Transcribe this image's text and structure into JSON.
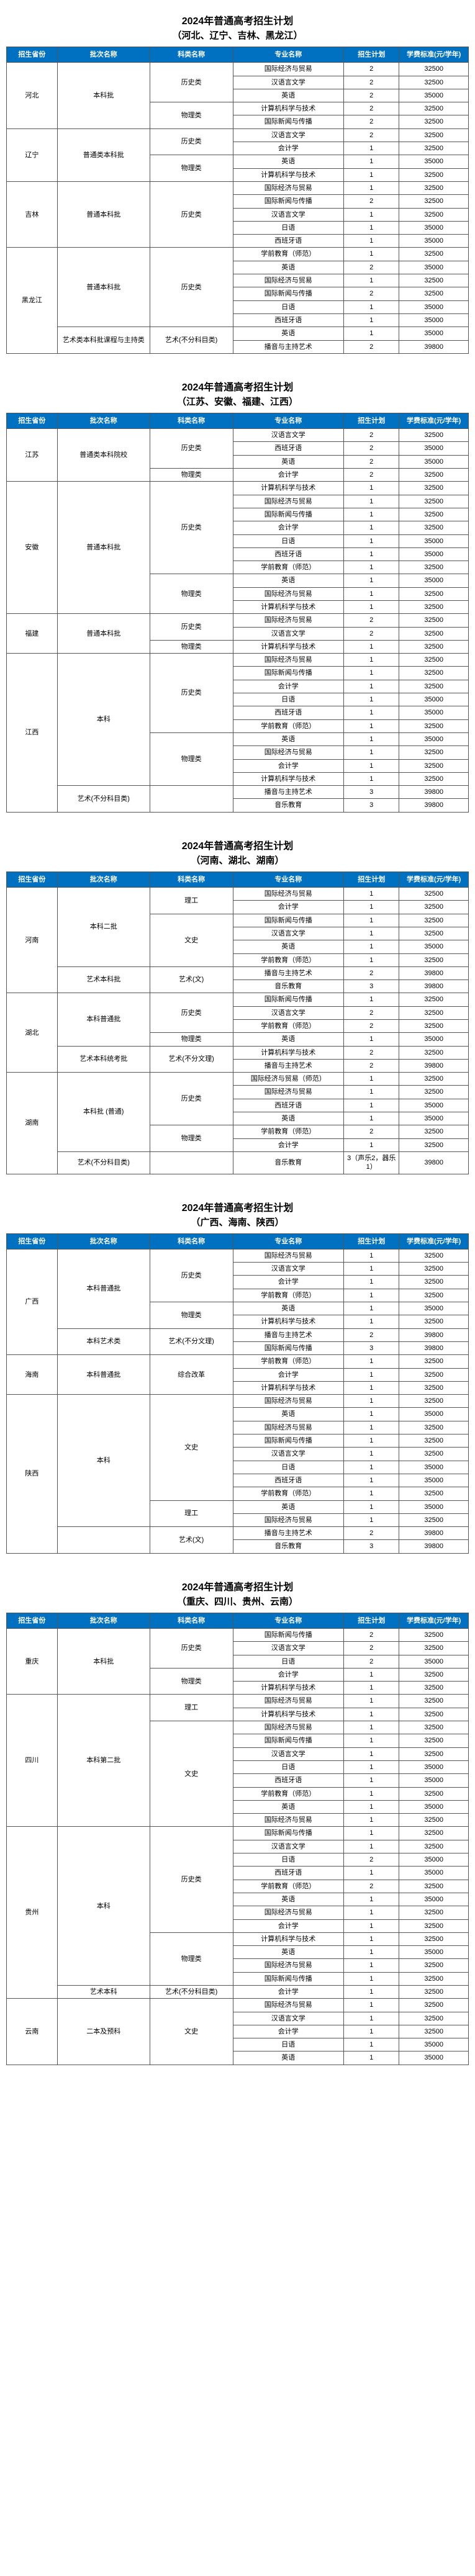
{
  "headers": {
    "province": "招生省份",
    "batch": "批次名称",
    "subject": "科类名称",
    "major": "专业名称",
    "num": "招生计划",
    "fee": "学费标准(元/学年)"
  },
  "sections": [
    {
      "title": "2024年普通高考招生计划",
      "subtitle": "（河北、辽宁、吉林、黑龙江）",
      "rows": [
        {
          "p": "河北",
          "pr": 5,
          "b": "本科批",
          "br": 5,
          "s": "历史类",
          "sr": 3,
          "m": "国际经济与贸易",
          "n": "2",
          "f": "32500"
        },
        {
          "m": "汉语言文学",
          "n": "2",
          "f": "32500"
        },
        {
          "m": "英语",
          "n": "2",
          "f": "35000"
        },
        {
          "s": "物理类",
          "sr": 2,
          "m": "计算机科学与技术",
          "n": "2",
          "f": "32500"
        },
        {
          "m": "国际新闻与传播",
          "n": "2",
          "f": "32500"
        },
        {
          "p": "辽宁",
          "pr": 4,
          "b": "普通类本科批",
          "br": 4,
          "s": "历史类",
          "sr": 2,
          "m": "汉语言文学",
          "n": "2",
          "f": "32500"
        },
        {
          "m": "会计学",
          "n": "1",
          "f": "32500"
        },
        {
          "s": "物理类",
          "sr": 2,
          "m": "英语",
          "n": "1",
          "f": "35000"
        },
        {
          "m": "计算机科学与技术",
          "n": "1",
          "f": "32500"
        },
        {
          "p": "吉林",
          "pr": 5,
          "b": "普通本科批",
          "br": 5,
          "s": "历史类",
          "sr": 5,
          "m": "国际经济与贸易",
          "n": "1",
          "f": "32500"
        },
        {
          "m": "国际新闻与传播",
          "n": "2",
          "f": "32500"
        },
        {
          "m": "汉语言文学",
          "n": "1",
          "f": "32500"
        },
        {
          "m": "日语",
          "n": "1",
          "f": "35000"
        },
        {
          "m": "西班牙语",
          "n": "1",
          "f": "35000"
        },
        {
          "p": "黑龙江",
          "pr": 8,
          "b": "普通本科批",
          "br": 6,
          "s": "历史类",
          "sr": 6,
          "m": "学前教育（师范）",
          "n": "1",
          "f": "32500"
        },
        {
          "m": "英语",
          "n": "2",
          "f": "35000"
        },
        {
          "m": "国际经济与贸易",
          "n": "1",
          "f": "32500"
        },
        {
          "m": "国际新闻与传播",
          "n": "2",
          "f": "32500"
        },
        {
          "m": "日语",
          "n": "1",
          "f": "35000"
        },
        {
          "m": "西班牙语",
          "n": "1",
          "f": "35000"
        },
        {
          "b": "艺术类本科批课程与主持类",
          "br": 2,
          "s": "艺术(不分科目类)",
          "sr": 2,
          "m": "英语",
          "n": "1",
          "f": "35000"
        },
        {
          "m": "播音与主持艺术",
          "n": "2",
          "f": "39800"
        }
      ]
    },
    {
      "title": "2024年普通高考招生计划",
      "subtitle": "（江苏、安徽、福建、江西）",
      "rows": [
        {
          "p": "江苏",
          "pr": 4,
          "b": "普通类本科院校",
          "br": 4,
          "s": "历史类",
          "sr": 3,
          "m": "汉语言文学",
          "n": "2",
          "f": "32500"
        },
        {
          "m": "西班牙语",
          "n": "2",
          "f": "35000"
        },
        {
          "m": "英语",
          "n": "2",
          "f": "35000"
        },
        {
          "s": "物理类",
          "sr": 1,
          "m": "会计学",
          "n": "2",
          "f": "32500"
        },
        {
          "p": "安徽",
          "pr": 10,
          "b": "普通本科批",
          "br": 10,
          "s": "历史类",
          "sr": 7,
          "m": "计算机科学与技术",
          "n": "1",
          "f": "32500"
        },
        {
          "m": "国际经济与贸易",
          "n": "1",
          "f": "32500"
        },
        {
          "m": "国际新闻与传播",
          "n": "1",
          "f": "32500"
        },
        {
          "m": "会计学",
          "n": "1",
          "f": "32500"
        },
        {
          "m": "日语",
          "n": "1",
          "f": "35000"
        },
        {
          "m": "西班牙语",
          "n": "1",
          "f": "35000"
        },
        {
          "m": "学前教育（师范）",
          "n": "1",
          "f": "32500"
        },
        {
          "s": "物理类",
          "sr": 3,
          "m": "英语",
          "n": "1",
          "f": "35000"
        },
        {
          "m": "国际经济与贸易",
          "n": "1",
          "f": "32500"
        },
        {
          "m": "计算机科学与技术",
          "n": "1",
          "f": "32500"
        },
        {
          "p": "福建",
          "pr": 3,
          "b": "普通本科批",
          "br": 3,
          "s": "历史类",
          "sr": 2,
          "m": "国际经济与贸易",
          "n": "2",
          "f": "32500"
        },
        {
          "m": "汉语言文学",
          "n": "2",
          "f": "32500"
        },
        {
          "s": "物理类",
          "sr": 1,
          "m": "计算机科学与技术",
          "n": "1",
          "f": "32500"
        },
        {
          "p": "江西",
          "pr": 12,
          "b": "本科",
          "br": 10,
          "s": "历史类",
          "sr": 6,
          "m": "国际经济与贸易",
          "n": "1",
          "f": "32500"
        },
        {
          "m": "国际新闻与传播",
          "n": "1",
          "f": "32500"
        },
        {
          "m": "会计学",
          "n": "1",
          "f": "32500"
        },
        {
          "m": "日语",
          "n": "1",
          "f": "35000"
        },
        {
          "m": "西班牙语",
          "n": "1",
          "f": "35000"
        },
        {
          "m": "学前教育（师范）",
          "n": "1",
          "f": "32500"
        },
        {
          "s": "物理类",
          "sr": 4,
          "m": "英语",
          "n": "1",
          "f": "35000"
        },
        {
          "m": "国际经济与贸易",
          "n": "1",
          "f": "32500"
        },
        {
          "m": "会计学",
          "n": "1",
          "f": "32500"
        },
        {
          "m": "计算机科学与技术",
          "n": "1",
          "f": "32500"
        },
        {
          "b": "艺术(不分科目类)",
          "br": 2,
          "s": "",
          "sr": 2,
          "m": "播音与主持艺术",
          "n": "3",
          "f": "39800"
        },
        {
          "m": "音乐教育",
          "n": "3",
          "f": "39800"
        }
      ]
    },
    {
      "title": "2024年普通高考招生计划",
      "subtitle": "（河南、湖北、湖南）",
      "rows": [
        {
          "p": "河南",
          "pr": 8,
          "b": "本科二批",
          "br": 6,
          "s": "理工",
          "sr": 2,
          "m": "国际经济与贸易",
          "n": "1",
          "f": "32500"
        },
        {
          "m": "会计学",
          "n": "1",
          "f": "32500"
        },
        {
          "s": "文史",
          "sr": 4,
          "m": "国际新闻与传播",
          "n": "1",
          "f": "32500"
        },
        {
          "m": "汉语言文学",
          "n": "1",
          "f": "32500"
        },
        {
          "m": "英语",
          "n": "1",
          "f": "35000"
        },
        {
          "m": "学前教育（师范）",
          "n": "1",
          "f": "32500"
        },
        {
          "b": "艺术本科批",
          "br": 2,
          "s": "艺术(文)",
          "sr": 2,
          "m": "播音与主持艺术",
          "n": "2",
          "f": "39800"
        },
        {
          "m": "音乐教育",
          "n": "3",
          "f": "39800"
        },
        {
          "p": "湖北",
          "pr": 6,
          "b": "本科普通批",
          "br": 4,
          "s": "历史类",
          "sr": 3,
          "m": "国际新闻与传播",
          "n": "1",
          "f": "32500"
        },
        {
          "m": "汉语言文学",
          "n": "2",
          "f": "32500"
        },
        {
          "m": "学前教育（师范）",
          "n": "2",
          "f": "32500"
        },
        {
          "s": "物理类",
          "sr": 1,
          "m": "英语",
          "n": "1",
          "f": "35000"
        },
        {
          "b": "艺术本科统考批",
          "br": 2,
          "s": "艺术(不分文理)",
          "sr": 2,
          "m": "计算机科学与技术",
          "n": "2",
          "f": "32500"
        },
        {
          "m": "播音与主持艺术",
          "n": "2",
          "f": "39800"
        },
        {
          "p": "湖南",
          "pr": 7,
          "b": "本科批 (普通)",
          "br": 6,
          "s": "历史类",
          "sr": 4,
          "m": "国际经济与贸易（师范）",
          "n": "1",
          "f": "32500"
        },
        {
          "m": "国际经济与贸易",
          "n": "1",
          "f": "32500"
        },
        {
          "m": "西班牙语",
          "n": "1",
          "f": "35000"
        },
        {
          "m": "英语",
          "n": "1",
          "f": "35000"
        },
        {
          "s": "物理类",
          "sr": 2,
          "m": "学前教育（师范）",
          "n": "2",
          "f": "32500"
        },
        {
          "m": "会计学",
          "n": "1",
          "f": "32500"
        },
        {
          "b": "艺术(不分科目类)",
          "br": 1,
          "s": "",
          "sr": 1,
          "m": "音乐教育",
          "n": "3（声乐2，器乐1）",
          "f": "39800"
        }
      ]
    },
    {
      "title": "2024年普通高考招生计划",
      "subtitle": "（广西、海南、陕西）",
      "rows": [
        {
          "p": "广西",
          "pr": 8,
          "b": "本科普通批",
          "br": 6,
          "s": "历史类",
          "sr": 4,
          "m": "国际经济与贸易",
          "n": "1",
          "f": "32500"
        },
        {
          "m": "汉语言文学",
          "n": "1",
          "f": "32500"
        },
        {
          "m": "会计学",
          "n": "1",
          "f": "32500"
        },
        {
          "m": "学前教育（师范）",
          "n": "1",
          "f": "32500"
        },
        {
          "s": "物理类",
          "sr": 2,
          "m": "英语",
          "n": "1",
          "f": "35000"
        },
        {
          "m": "计算机科学与技术",
          "n": "1",
          "f": "32500"
        },
        {
          "b": "本科艺术类",
          "br": 2,
          "s": "艺术(不分文理)",
          "sr": 2,
          "m": "播音与主持艺术",
          "n": "2",
          "f": "39800"
        },
        {
          "m": "国际新闻与传播",
          "n": "3",
          "f": "39800"
        },
        {
          "p": "海南",
          "pr": 3,
          "b": "本科普通批",
          "br": 3,
          "s": "综合改革",
          "sr": 3,
          "m": "学前教育（师范）",
          "n": "1",
          "f": "32500"
        },
        {
          "m": "会计学",
          "n": "1",
          "f": "32500"
        },
        {
          "m": "计算机科学与技术",
          "n": "1",
          "f": "32500"
        },
        {
          "p": "陕西",
          "pr": 12,
          "b": "本科",
          "br": 10,
          "s": "文史",
          "sr": 8,
          "m": "国际经济与贸易",
          "n": "1",
          "f": "32500"
        },
        {
          "m": "英语",
          "n": "1",
          "f": "35000"
        },
        {
          "m": "国际经济与贸易",
          "n": "1",
          "f": "32500"
        },
        {
          "m": "国际新闻与传播",
          "n": "1",
          "f": "32500"
        },
        {
          "m": "汉语言文学",
          "n": "1",
          "f": "32500"
        },
        {
          "m": "日语",
          "n": "1",
          "f": "35000"
        },
        {
          "m": "西班牙语",
          "n": "1",
          "f": "35000"
        },
        {
          "m": "学前教育（师范）",
          "n": "1",
          "f": "32500"
        },
        {
          "s": "理工",
          "sr": 2,
          "m": "英语",
          "n": "1",
          "f": "35000"
        },
        {
          "m": "国际经济与贸易",
          "n": "1",
          "f": "32500"
        },
        {
          "b": "",
          "br": 2,
          "s": "艺术(文)",
          "sr": 2,
          "m": "播音与主持艺术",
          "n": "2",
          "f": "39800"
        },
        {
          "m": "音乐教育",
          "n": "3",
          "f": "39800"
        }
      ]
    },
    {
      "title": "2024年普通高考招生计划",
      "subtitle": "（重庆、四川、贵州、云南）",
      "rows": [
        {
          "p": "重庆",
          "pr": 5,
          "b": "本科批",
          "br": 5,
          "s": "历史类",
          "sr": 3,
          "m": "国际新闻与传播",
          "n": "2",
          "f": "32500"
        },
        {
          "m": "汉语言文学",
          "n": "2",
          "f": "32500"
        },
        {
          "m": "日语",
          "n": "2",
          "f": "35000"
        },
        {
          "s": "物理类",
          "sr": 2,
          "m": "会计学",
          "n": "1",
          "f": "32500"
        },
        {
          "m": "计算机科学与技术",
          "n": "1",
          "f": "32500"
        },
        {
          "p": "四川",
          "pr": 10,
          "b": "本科第二批",
          "br": 10,
          "s": "理工",
          "sr": 2,
          "m": "国际经济与贸易",
          "n": "1",
          "f": "32500"
        },
        {
          "m": "计算机科学与技术",
          "n": "1",
          "f": "32500"
        },
        {
          "s": "文史",
          "sr": 8,
          "m": "国际经济与贸易",
          "n": "1",
          "f": "32500"
        },
        {
          "m": "国际新闻与传播",
          "n": "1",
          "f": "32500"
        },
        {
          "m": "汉语言文学",
          "n": "1",
          "f": "32500"
        },
        {
          "m": "日语",
          "n": "1",
          "f": "35000"
        },
        {
          "m": "西班牙语",
          "n": "1",
          "f": "35000"
        },
        {
          "m": "学前教育（师范）",
          "n": "1",
          "f": "32500"
        },
        {
          "m": "英语",
          "n": "1",
          "f": "35000"
        },
        {
          "m": "国际经济与贸易",
          "n": "1",
          "f": "32500"
        },
        {
          "p": "贵州",
          "pr": 13,
          "b": "本科",
          "br": 12,
          "s": "历史类",
          "sr": 8,
          "m": "国际新闻与传播",
          "n": "1",
          "f": "32500"
        },
        {
          "m": "汉语言文学",
          "n": "1",
          "f": "32500"
        },
        {
          "m": "日语",
          "n": "2",
          "f": "35000"
        },
        {
          "m": "西班牙语",
          "n": "1",
          "f": "35000"
        },
        {
          "m": "学前教育（师范）",
          "n": "2",
          "f": "32500"
        },
        {
          "m": "英语",
          "n": "1",
          "f": "35000"
        },
        {
          "m": "国际经济与贸易",
          "n": "1",
          "f": "32500"
        },
        {
          "m": "会计学",
          "n": "1",
          "f": "32500"
        },
        {
          "s": "物理类",
          "sr": 4,
          "m": "计算机科学与技术",
          "n": "1",
          "f": "32500"
        },
        {
          "m": "英语",
          "n": "1",
          "f": "35000"
        },
        {
          "m": "国际经济与贸易",
          "n": "1",
          "f": "32500"
        },
        {
          "m": "国际新闻与传播",
          "n": "1",
          "f": "32500"
        },
        {
          "b": "艺术本科",
          "br": 1,
          "s": "艺术(不分科目类)",
          "sr": 1,
          "m": "会计学",
          "n": "1",
          "f": "32500"
        },
        {
          "p": "云南",
          "pr": 5,
          "b": "二本及预科",
          "br": 5,
          "s": "文史",
          "sr": 5,
          "m": "国际经济与贸易",
          "n": "1",
          "f": "32500"
        },
        {
          "m": "汉语言文学",
          "n": "1",
          "f": "32500"
        },
        {
          "m": "会计学",
          "n": "1",
          "f": "32500"
        },
        {
          "m": "日语",
          "n": "1",
          "f": "35000"
        },
        {
          "m": "英语",
          "n": "1",
          "f": "35000"
        }
      ]
    }
  ]
}
